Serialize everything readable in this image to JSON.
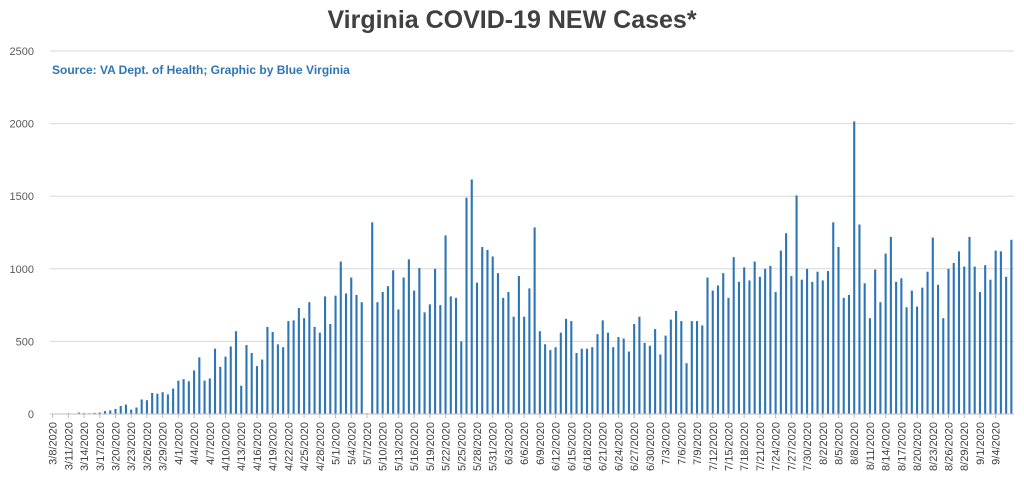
{
  "chart_data": {
    "type": "bar",
    "title": "Virginia COVID-19 NEW Cases*",
    "subtitle": "Source: VA Dept. of Health; Graphic by Blue Virginia",
    "xlabel": "",
    "ylabel": "",
    "ylim": [
      0,
      2500
    ],
    "yticks": [
      "0",
      "500",
      "1000",
      "1500",
      "2000",
      "2500"
    ],
    "grid": true,
    "legend": "none",
    "bar_color": "#2e75b6",
    "x_start_date": "2020-03-08",
    "x_tick_labels": [
      "3/8/2020",
      "3/11/2020",
      "3/14/2020",
      "3/17/2020",
      "3/20/2020",
      "3/23/2020",
      "3/26/2020",
      "3/29/2020",
      "4/1/2020",
      "4/4/2020",
      "4/7/2020",
      "4/10/2020",
      "4/13/2020",
      "4/16/2020",
      "4/19/2020",
      "4/22/2020",
      "4/25/2020",
      "4/28/2020",
      "5/1/2020",
      "5/4/2020",
      "5/7/2020",
      "5/10/2020",
      "5/13/2020",
      "5/16/2020",
      "5/19/2020",
      "5/22/2020",
      "5/25/2020",
      "5/28/2020",
      "5/31/2020",
      "6/3/2020",
      "6/6/2020",
      "6/9/2020",
      "6/12/2020",
      "6/15/2020",
      "6/18/2020",
      "6/21/2020",
      "6/24/2020",
      "6/27/2020",
      "6/30/2020",
      "7/3/2020",
      "7/6/2020",
      "7/9/2020",
      "7/12/2020",
      "7/15/2020",
      "7/18/2020",
      "7/21/2020",
      "7/24/2020",
      "7/27/2020",
      "7/30/2020",
      "8/2/2020",
      "8/5/2020",
      "8/8/2020",
      "8/11/2020",
      "8/14/2020",
      "8/17/2020",
      "8/20/2020",
      "8/23/2020",
      "8/26/2020",
      "8/29/2020",
      "9/1/2020",
      "9/4/2020"
    ],
    "values": [
      2,
      1,
      2,
      5,
      3,
      10,
      6,
      5,
      8,
      10,
      20,
      25,
      35,
      55,
      65,
      30,
      45,
      100,
      95,
      145,
      140,
      150,
      135,
      175,
      230,
      240,
      225,
      300,
      390,
      230,
      245,
      450,
      325,
      395,
      465,
      570,
      195,
      475,
      420,
      330,
      375,
      600,
      565,
      480,
      460,
      640,
      645,
      730,
      660,
      770,
      600,
      560,
      810,
      620,
      815,
      1050,
      830,
      940,
      820,
      770,
      5,
      1320,
      770,
      840,
      880,
      990,
      720,
      940,
      1065,
      850,
      1005,
      700,
      755,
      1000,
      750,
      1230,
      810,
      800,
      500,
      1490,
      1615,
      905,
      1150,
      1130,
      1085,
      970,
      800,
      840,
      670,
      950,
      670,
      865,
      1285,
      570,
      480,
      440,
      460,
      560,
      655,
      640,
      420,
      450,
      450,
      460,
      550,
      645,
      560,
      460,
      530,
      520,
      430,
      620,
      670,
      490,
      470,
      585,
      410,
      540,
      650,
      710,
      640,
      350,
      640,
      640,
      610,
      940,
      850,
      885,
      970,
      800,
      1080,
      910,
      1010,
      920,
      1050,
      945,
      1000,
      1020,
      840,
      1125,
      1245,
      950,
      1505,
      925,
      1000,
      910,
      980,
      920,
      985,
      1320,
      1150,
      800,
      820,
      2015,
      1305,
      900,
      660,
      995,
      770,
      1105,
      1220,
      910,
      935,
      735,
      850,
      740,
      870,
      980,
      1215,
      890,
      660,
      1000,
      1040,
      1120,
      1015,
      1220,
      1015,
      840,
      1025,
      925,
      1125,
      1120,
      945,
      1200
    ]
  }
}
